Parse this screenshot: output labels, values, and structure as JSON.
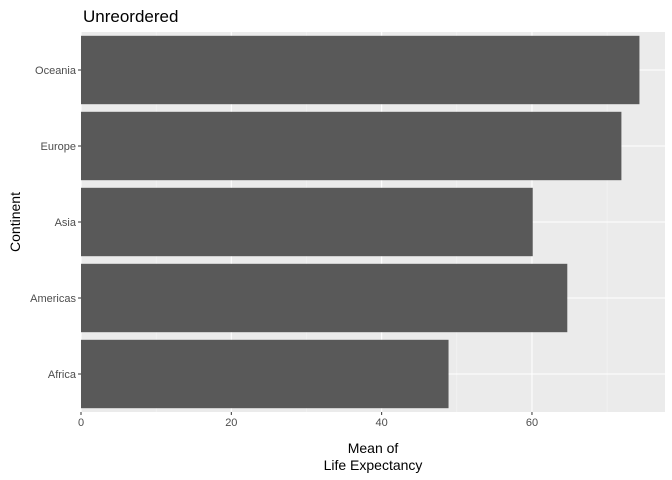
{
  "chart_data": {
    "type": "bar",
    "orientation": "horizontal",
    "title": "Unreordered",
    "xlabel": [
      "Mean of",
      "Life Expectancy"
    ],
    "ylabel": "Continent",
    "categories": [
      "Africa",
      "Americas",
      "Asia",
      "Europe",
      "Oceania"
    ],
    "values": [
      48.9,
      64.7,
      60.1,
      71.9,
      74.3
    ],
    "xlim": [
      0,
      77.7
    ],
    "xticks": [
      0,
      20,
      40,
      60
    ],
    "grid": true,
    "legend": "none",
    "colors": {
      "bar": "#595959",
      "panel": "#ebebeb",
      "grid_major": "#ffffff",
      "grid_minor": "#f5f5f5",
      "tick_label": "#4d4d4d",
      "tick_mark": "#333333"
    }
  }
}
